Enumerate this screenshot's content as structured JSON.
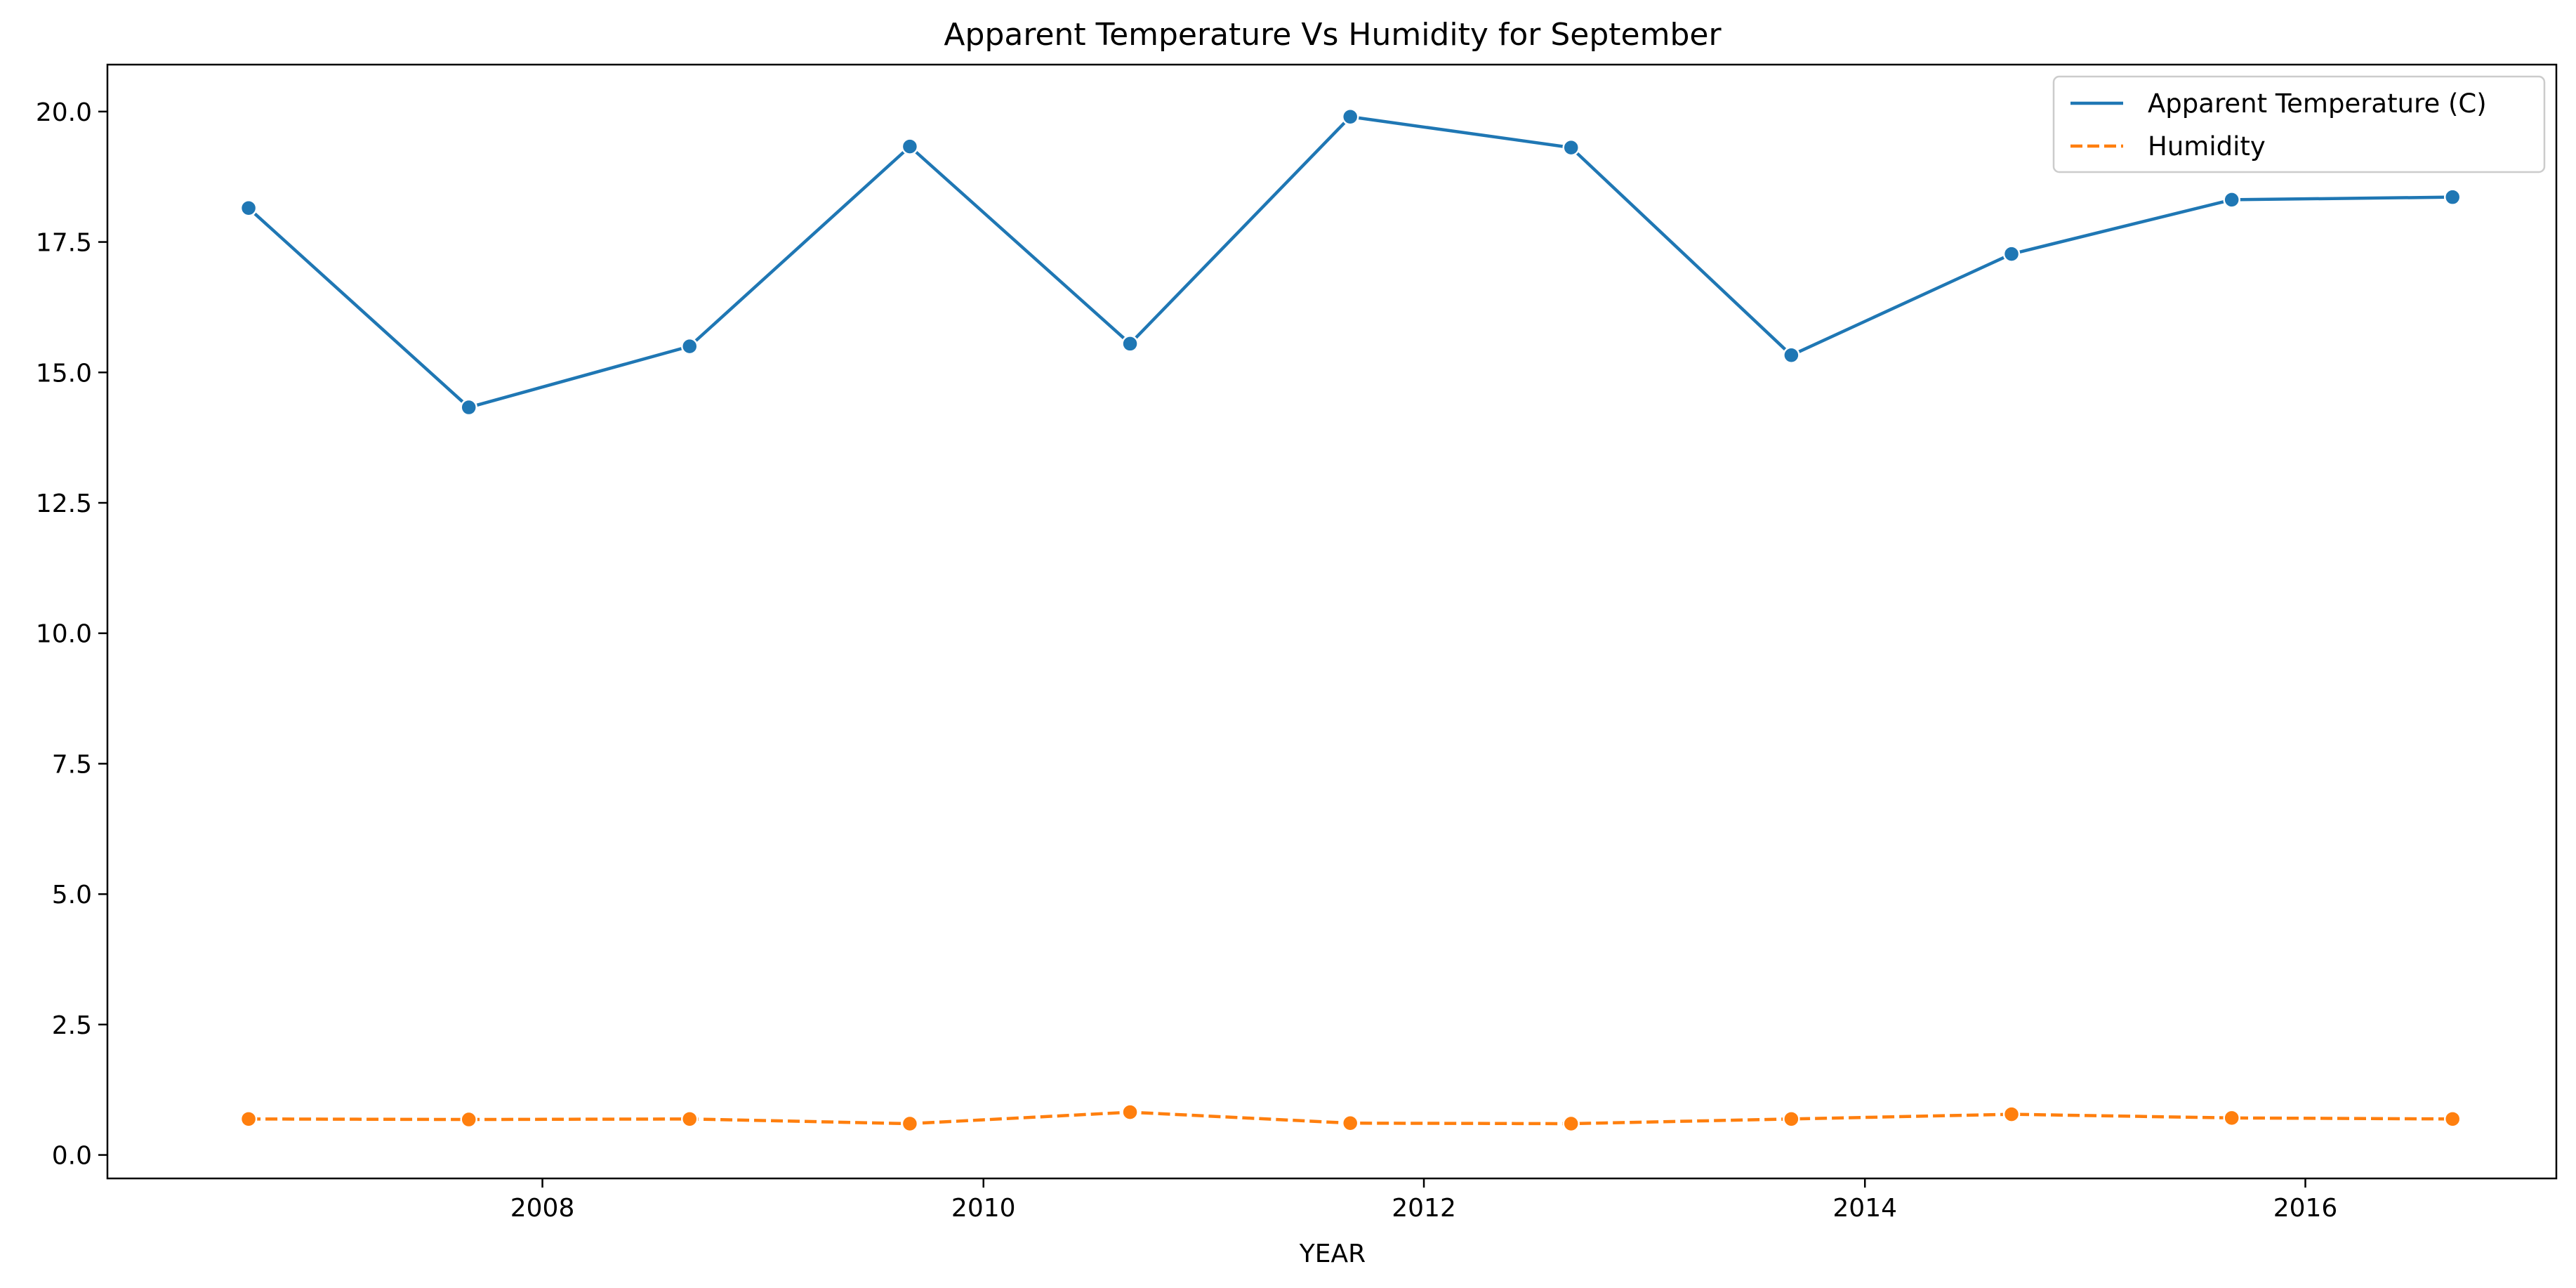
{
  "chart_data": {
    "type": "line",
    "title": "Apparent Temperature Vs Humidity for September",
    "xlabel": "YEAR",
    "ylabel": "",
    "x": [
      "2006-09-01",
      "2007-09-01",
      "2008-09-01",
      "2009-09-01",
      "2010-09-01",
      "2011-09-01",
      "2012-09-01",
      "2013-09-01",
      "2014-09-01",
      "2015-09-01",
      "2016-09-01"
    ],
    "x_ticks": [
      "2008",
      "2010",
      "2012",
      "2014",
      "2016"
    ],
    "xlim": [
      "2006-01-10",
      "2017-02-20"
    ],
    "ylim": [
      -0.45,
      20.9
    ],
    "y_ticks": [
      "0.0",
      "2.5",
      "5.0",
      "7.5",
      "10.0",
      "12.5",
      "15.0",
      "17.5",
      "20.0"
    ],
    "grid": false,
    "legend_position": "top-right",
    "series": [
      {
        "name": "Apparent Temperature (C)",
        "color": "#1f77b4",
        "line_style": "solid",
        "values": [
          18.15,
          14.33,
          15.5,
          19.33,
          15.55,
          19.9,
          19.31,
          15.33,
          17.27,
          18.31,
          18.36
        ]
      },
      {
        "name": "Humidity",
        "color": "#ff7f0e",
        "line_style": "dashed",
        "values": [
          0.69,
          0.68,
          0.69,
          0.6,
          0.82,
          0.61,
          0.6,
          0.69,
          0.78,
          0.71,
          0.69
        ]
      }
    ]
  }
}
